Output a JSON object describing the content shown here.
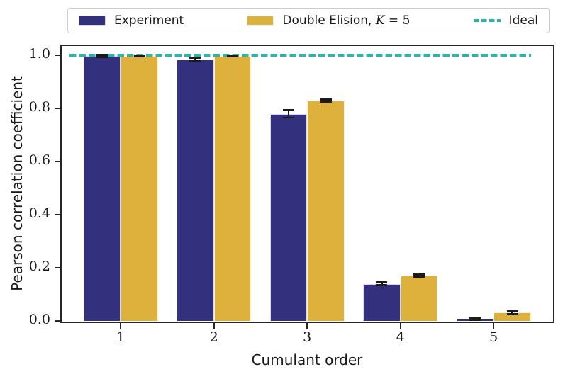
{
  "legend": {
    "entries": [
      {
        "label": "Experiment",
        "swatch_color": "#33317d",
        "type": "patch"
      },
      {
        "label_before": "Double Elision, ",
        "label_math_var": "K",
        "label_math_rest": " = 5",
        "swatch_color": "#deb13c",
        "type": "patch"
      },
      {
        "label": "Ideal",
        "line_color": "#2bb5aa",
        "type": "dashed-line"
      }
    ]
  },
  "chart_data": {
    "type": "bar",
    "title": "",
    "xlabel": "Cumulant order",
    "ylabel": "Pearson correlation coefficient",
    "categories": [
      "1",
      "2",
      "3",
      "4",
      "5"
    ],
    "series": [
      {
        "name": "Experiment",
        "color": "#33317d",
        "edge_color": "#d9d9ef",
        "values": [
          0.997,
          0.985,
          0.78,
          0.14,
          0.007
        ],
        "errors": [
          0.004,
          0.006,
          0.015,
          0.005,
          0.004
        ]
      },
      {
        "name": "Double Elision, K = 5",
        "color": "#deb13c",
        "edge_color": "#fdf3d9",
        "values": [
          0.998,
          0.997,
          0.83,
          0.17,
          0.031
        ],
        "errors": [
          0.002,
          0.002,
          0.004,
          0.005,
          0.005
        ]
      }
    ],
    "reference_line": {
      "label": "Ideal",
      "value": 1.0,
      "color": "#2bb5aa",
      "style": "dashed"
    },
    "yticks": [
      "0.0",
      "0.2",
      "0.4",
      "0.6",
      "0.8",
      "1.0"
    ],
    "ylim": [
      0,
      1.05
    ],
    "grid": false,
    "legend_position": "top",
    "error_bar_color": "#1a1a1a"
  }
}
